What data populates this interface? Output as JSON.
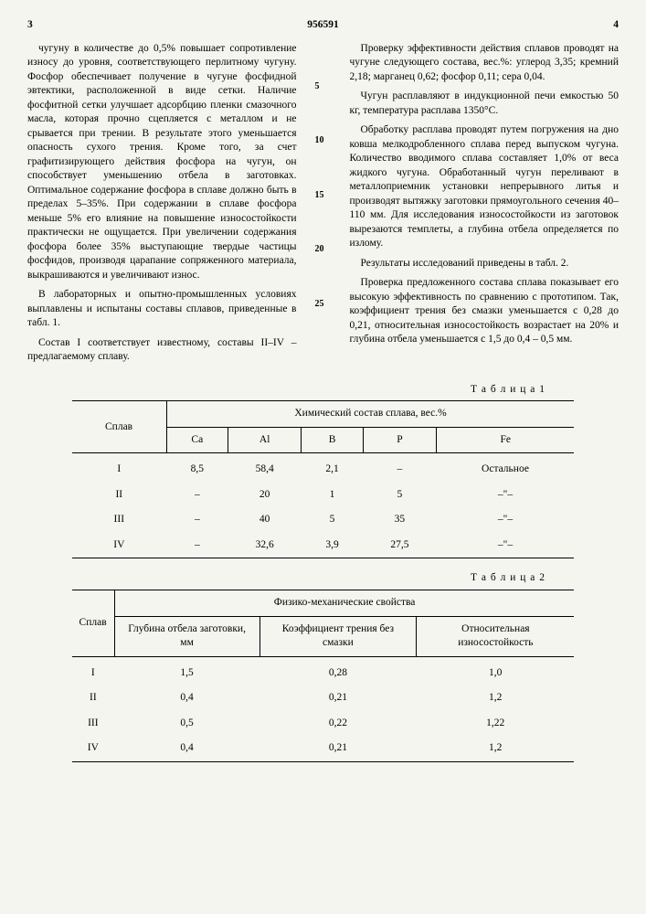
{
  "patent_number": "956591",
  "page_left": "3",
  "page_right": "4",
  "line_markers": [
    "5",
    "10",
    "15",
    "20",
    "25"
  ],
  "col_left": {
    "p1": "чугуну в количестве до 0,5% повышает сопротивление износу до уровня, соответствующего перлитному чугуну. Фосфор обеспечивает получение в чугуне фосфидной эвтектики, расположенной в виде сетки. Наличие фосфитной сетки улучшает адсорбцию пленки смазочного масла, которая прочно сцепляется с металлом и не срывается при трении. В результате этого уменьшается опасность сухого трения. Кроме того, за счет графитизирующего действия фосфора на чугун, он способствует уменьшению отбела в заготовках. Оптимальное содержание фосфора в сплаве должно быть в пределах 5–35%. При содержании в сплаве фосфора меньше 5% его влияние на повышение износостойкости практически не ощущается. При увеличении содержания фосфора более 35% выступающие твердые частицы фосфидов, производя царапание сопряженного материала, выкрашиваются и увеличивают износ.",
    "p2": "В лабораторных и опытно-промышленных условиях выплавлены и испытаны составы сплавов, приведенные в табл. 1.",
    "p3": "Состав I соответствует известному, составы II–IV – предлагаемому сплаву."
  },
  "col_right": {
    "p1": "Проверку эффективности действия сплавов проводят на чугуне следующего состава, вес.%: углерод 3,35; кремний 2,18; марганец 0,62; фосфор 0,11; сера 0,04.",
    "p2": "Чугун расплавляют в индукционной печи емкостью 50 кг, температура расплава 1350°С.",
    "p3": "Обработку расплава проводят путем погружения на дно ковша мелкодробленного сплава перед выпуском чугуна. Количество вводимого сплава составляет 1,0% от веса жидкого чугуна. Обработанный чугун переливают в металлоприемник установки непрерывного литья и производят вытяжку заготовки прямоугольного сечения 40–110 мм. Для исследования износостойкости из заготовок вырезаются темплеты, а глубина отбела определяется по излому.",
    "p4": "Результаты исследований приведены в табл. 2.",
    "p5": "Проверка предложенного состава сплава показывает его высокую эффективность по сравнению с прототипом. Так, коэффициент трения без смазки уменьшается с 0,28 до 0,21, относительная износостойкость возрастает на 20% и глубина отбела уменьшается с 1,5 до 0,4 – 0,5 мм."
  },
  "table1": {
    "title": "Т а б л и ц а  1",
    "col_head": "Сплав",
    "group_head": "Химический состав сплава, вес.%",
    "cols": [
      "Ca",
      "Al",
      "B",
      "P",
      "Fe"
    ],
    "rows": [
      [
        "I",
        "8,5",
        "58,4",
        "2,1",
        "–",
        "Остальное"
      ],
      [
        "II",
        "–",
        "20",
        "1",
        "5",
        "–\"–"
      ],
      [
        "III",
        "–",
        "40",
        "5",
        "35",
        "–\"–"
      ],
      [
        "IV",
        "–",
        "32,6",
        "3,9",
        "27,5",
        "–\"–"
      ]
    ]
  },
  "table2": {
    "title": "Т а б л и ц а  2",
    "col_head": "Сплав",
    "group_head": "Физико-механические свойства",
    "cols": [
      "Глубина отбела заготовки, мм",
      "Коэффициент трения без смазки",
      "Относительная износостойкость"
    ],
    "rows": [
      [
        "I",
        "1,5",
        "0,28",
        "1,0"
      ],
      [
        "II",
        "0,4",
        "0,21",
        "1,2"
      ],
      [
        "III",
        "0,5",
        "0,22",
        "1,22"
      ],
      [
        "IV",
        "0,4",
        "0,21",
        "1,2"
      ]
    ]
  }
}
